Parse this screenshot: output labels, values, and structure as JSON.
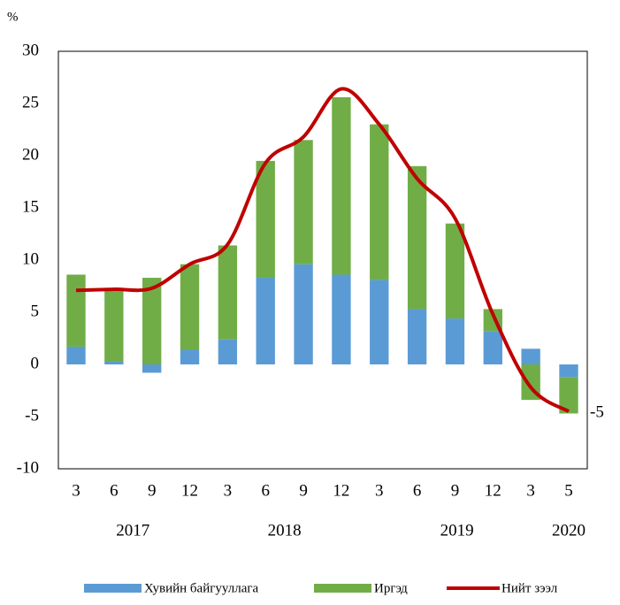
{
  "chart_data": {
    "type": "bar",
    "y_unit": "%",
    "categories": [
      "3",
      "6",
      "9",
      "12",
      "3",
      "6",
      "9",
      "12",
      "3",
      "6",
      "9",
      "12",
      "3",
      "5"
    ],
    "years": [
      "2017",
      "2018",
      "2019",
      "2020"
    ],
    "series": [
      {
        "name": "Хувийн байгууллага",
        "type": "bar",
        "color": "#5b9bd5",
        "values": [
          1.7,
          0.3,
          -0.8,
          1.4,
          2.4,
          8.3,
          9.6,
          8.6,
          8.1,
          5.3,
          4.4,
          3.2,
          1.5,
          -1.2
        ]
      },
      {
        "name": "Иргэд",
        "type": "bar",
        "color": "#70ad47",
        "values": [
          6.9,
          6.9,
          8.3,
          8.2,
          9.0,
          11.2,
          11.9,
          17.0,
          14.9,
          13.7,
          9.1,
          2.1,
          -3.4,
          -3.5
        ]
      },
      {
        "name": "Нийт зээл",
        "type": "line",
        "color": "#c00000",
        "values": [
          7.1,
          7.2,
          7.3,
          9.6,
          11.5,
          19.3,
          21.8,
          26.4,
          23.0,
          17.8,
          14.0,
          4.8,
          -2.2,
          -4.5
        ]
      }
    ],
    "annotation": "-5",
    "ylim": [
      -10,
      30
    ],
    "yticks": [
      -10,
      -5,
      0,
      5,
      10,
      15,
      20,
      25,
      30
    ],
    "stacked": true,
    "grid": false,
    "legend": "bottom"
  }
}
